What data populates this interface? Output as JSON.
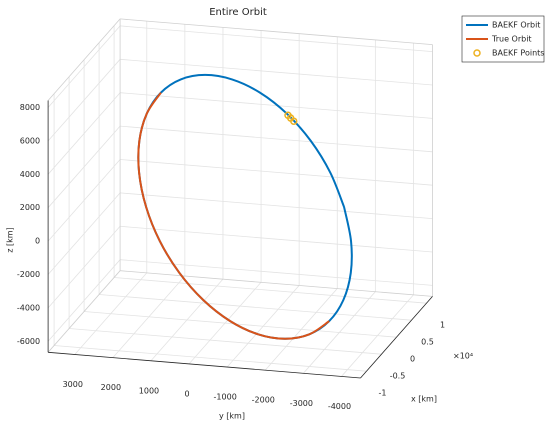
{
  "chart_data": {
    "type": "line3d",
    "title": "Entire Orbit",
    "xlabel": "x [km]",
    "ylabel": "y [km]",
    "zlabel": "z [km]",
    "x_multiplier": "×10⁴",
    "xlim": [
      -12000,
      12000
    ],
    "ylim": [
      -4500,
      3700
    ],
    "zlim": [
      -6660,
      8420
    ],
    "xticks": [
      {
        "value": -10000,
        "label": "-1"
      },
      {
        "value": -5000,
        "label": "-0.5"
      },
      0,
      {
        "value": 5000,
        "label": "0.5"
      },
      {
        "value": 10000,
        "label": "1"
      }
    ],
    "yticks": [
      3000,
      2000,
      1000,
      0,
      -1000,
      -2000,
      -3000,
      -4000
    ],
    "zticks": [
      -6000,
      -4000,
      -2000,
      0,
      2000,
      4000,
      6000,
      8000
    ],
    "grid": true,
    "legend": "northeast-outside",
    "series": [
      {
        "name": "BAEKF Orbit",
        "color": "#0072BD",
        "mode": "lines",
        "x": [
          -5500,
          -3886,
          -2008,
          7,
          2022,
          3898,
          5510,
          6748,
          7522,
          7785,
          7518,
          6740,
          5500,
          3886,
          2008,
          -7,
          -2022,
          -3898,
          -5510,
          -6748,
          -7522,
          -7785,
          -7518,
          -6740,
          -5500
        ],
        "y": [
          -3556,
          -3069,
          -2408,
          -1619,
          -756,
          124,
          959,
          1694,
          2276,
          2667,
          2842,
          2787,
          2506,
          2019,
          1358,
          569,
          -294,
          -1174,
          -2009,
          -2744,
          -3326,
          -3717,
          -3892,
          -3837,
          -3556
        ],
        "z": [
          2089,
          3716,
          5113,
          6190,
          6874,
          7116,
          6900,
          6242,
          5184,
          3802,
          2187,
          452,
          -1289,
          -2916,
          -4313,
          -5390,
          -6074,
          -6316,
          -6100,
          -5442,
          -4384,
          -3002,
          -1387,
          348,
          2089
        ]
      },
      {
        "name": "True Orbit",
        "color": "#D95319",
        "mode": "lines",
        "x": [
          7522,
          7785,
          7518,
          6740,
          5500,
          3886,
          2008,
          -7,
          -2022,
          -3898,
          -5510,
          -6748,
          -7522
        ],
        "y": [
          2276,
          2667,
          2842,
          2787,
          2506,
          2019,
          1358,
          569,
          -294,
          -1174,
          -2009,
          -2744,
          -3326
        ],
        "z": [
          5184,
          3802,
          2187,
          452,
          -1289,
          -2916,
          -4313,
          -5390,
          -6074,
          -6316,
          -6100,
          -5442,
          -4384
        ]
      },
      {
        "name": "BAEKF Points",
        "color": "#EDB120",
        "mode": "markers",
        "x": [
          -600,
          -350,
          -100
        ],
        "y": [
          -1850,
          -1750,
          -1660
        ],
        "z": [
          5900,
          6020,
          6120
        ]
      }
    ]
  }
}
